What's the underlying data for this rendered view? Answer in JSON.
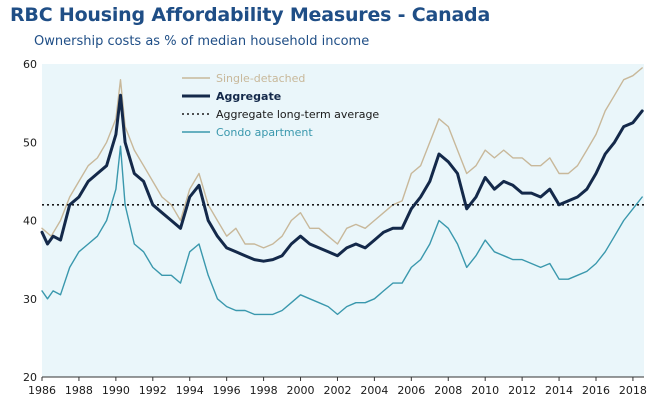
{
  "chart_data": {
    "type": "line",
    "title": "RBC Housing Affordability Measures - Canada",
    "subtitle": "Ownership costs as % of median household income",
    "xlabel": "",
    "ylabel": "",
    "xlim": [
      1986,
      2018.6
    ],
    "ylim": [
      20,
      60
    ],
    "yticks": [
      20,
      30,
      40,
      50,
      60
    ],
    "xticks": [
      1986,
      1988,
      1990,
      1992,
      1994,
      1996,
      1998,
      2000,
      2002,
      2004,
      2006,
      2008,
      2010,
      2012,
      2014,
      2016,
      2018
    ],
    "legend_position": "top-center",
    "series": [
      {
        "name": "Single-detached",
        "color": "#c8b89a",
        "style": "solid",
        "points": [
          [
            1986,
            39
          ],
          [
            1986.5,
            38
          ],
          [
            1987,
            40
          ],
          [
            1987.5,
            43
          ],
          [
            1988,
            45
          ],
          [
            1988.5,
            47
          ],
          [
            1989,
            48
          ],
          [
            1989.5,
            50
          ],
          [
            1990,
            53
          ],
          [
            1990.25,
            58
          ],
          [
            1990.5,
            52
          ],
          [
            1991,
            49
          ],
          [
            1991.5,
            47
          ],
          [
            1992,
            45
          ],
          [
            1992.5,
            43
          ],
          [
            1993,
            42
          ],
          [
            1993.5,
            40
          ],
          [
            1994,
            44
          ],
          [
            1994.5,
            46
          ],
          [
            1995,
            42
          ],
          [
            1995.5,
            40
          ],
          [
            1996,
            38
          ],
          [
            1996.5,
            39
          ],
          [
            1997,
            37
          ],
          [
            1997.5,
            37
          ],
          [
            1998,
            36.5
          ],
          [
            1998.5,
            37
          ],
          [
            1999,
            38
          ],
          [
            1999.5,
            40
          ],
          [
            2000,
            41
          ],
          [
            2000.5,
            39
          ],
          [
            2001,
            39
          ],
          [
            2001.5,
            38
          ],
          [
            2002,
            37
          ],
          [
            2002.5,
            39
          ],
          [
            2003,
            39.5
          ],
          [
            2003.5,
            39
          ],
          [
            2004,
            40
          ],
          [
            2004.5,
            41
          ],
          [
            2005,
            42
          ],
          [
            2005.5,
            42.5
          ],
          [
            2006,
            46
          ],
          [
            2006.5,
            47
          ],
          [
            2007,
            50
          ],
          [
            2007.5,
            53
          ],
          [
            2008,
            52
          ],
          [
            2008.5,
            49
          ],
          [
            2009,
            46
          ],
          [
            2009.5,
            47
          ],
          [
            2010,
            49
          ],
          [
            2010.5,
            48
          ],
          [
            2011,
            49
          ],
          [
            2011.5,
            48
          ],
          [
            2012,
            48
          ],
          [
            2012.5,
            47
          ],
          [
            2013,
            47
          ],
          [
            2013.5,
            48
          ],
          [
            2014,
            46
          ],
          [
            2014.5,
            46
          ],
          [
            2015,
            47
          ],
          [
            2015.5,
            49
          ],
          [
            2016,
            51
          ],
          [
            2016.5,
            54
          ],
          [
            2017,
            56
          ],
          [
            2017.5,
            58
          ],
          [
            2018,
            58.5
          ],
          [
            2018.5,
            59.5
          ]
        ]
      },
      {
        "name": "Aggregate",
        "color": "#14294a",
        "style": "solid",
        "points": [
          [
            1986,
            38.5
          ],
          [
            1986.3,
            37
          ],
          [
            1986.6,
            38
          ],
          [
            1987,
            37.5
          ],
          [
            1987.5,
            42
          ],
          [
            1988,
            43
          ],
          [
            1988.5,
            45
          ],
          [
            1989,
            46
          ],
          [
            1989.5,
            47
          ],
          [
            1990,
            51
          ],
          [
            1990.25,
            56
          ],
          [
            1990.5,
            50
          ],
          [
            1991,
            46
          ],
          [
            1991.5,
            45
          ],
          [
            1992,
            42
          ],
          [
            1992.5,
            41
          ],
          [
            1993,
            40
          ],
          [
            1993.5,
            39
          ],
          [
            1994,
            43
          ],
          [
            1994.5,
            44.5
          ],
          [
            1995,
            40
          ],
          [
            1995.5,
            38
          ],
          [
            1996,
            36.5
          ],
          [
            1996.5,
            36
          ],
          [
            1997,
            35.5
          ],
          [
            1997.5,
            35
          ],
          [
            1998,
            34.8
          ],
          [
            1998.5,
            35
          ],
          [
            1999,
            35.5
          ],
          [
            1999.5,
            37
          ],
          [
            2000,
            38
          ],
          [
            2000.5,
            37
          ],
          [
            2001,
            36.5
          ],
          [
            2001.5,
            36
          ],
          [
            2002,
            35.5
          ],
          [
            2002.5,
            36.5
          ],
          [
            2003,
            37
          ],
          [
            2003.5,
            36.5
          ],
          [
            2004,
            37.5
          ],
          [
            2004.5,
            38.5
          ],
          [
            2005,
            39
          ],
          [
            2005.5,
            39
          ],
          [
            2006,
            41.5
          ],
          [
            2006.5,
            43
          ],
          [
            2007,
            45
          ],
          [
            2007.5,
            48.5
          ],
          [
            2008,
            47.5
          ],
          [
            2008.5,
            46
          ],
          [
            2009,
            41.5
          ],
          [
            2009.5,
            43
          ],
          [
            2010,
            45.5
          ],
          [
            2010.5,
            44
          ],
          [
            2011,
            45
          ],
          [
            2011.5,
            44.5
          ],
          [
            2012,
            43.5
          ],
          [
            2012.5,
            43.5
          ],
          [
            2013,
            43
          ],
          [
            2013.5,
            44
          ],
          [
            2014,
            42
          ],
          [
            2014.5,
            42.5
          ],
          [
            2015,
            43
          ],
          [
            2015.5,
            44
          ],
          [
            2016,
            46
          ],
          [
            2016.5,
            48.5
          ],
          [
            2017,
            50
          ],
          [
            2017.5,
            52
          ],
          [
            2018,
            52.5
          ],
          [
            2018.5,
            54
          ]
        ]
      },
      {
        "name": "Aggregate long-term average",
        "color": "#1a1a1a",
        "style": "dotted",
        "points": [
          [
            1986,
            42
          ],
          [
            2018.6,
            42
          ]
        ]
      },
      {
        "name": "Condo apartment",
        "color": "#3a98ad",
        "style": "solid",
        "points": [
          [
            1986,
            31
          ],
          [
            1986.3,
            30
          ],
          [
            1986.6,
            31
          ],
          [
            1987,
            30.5
          ],
          [
            1987.5,
            34
          ],
          [
            1988,
            36
          ],
          [
            1988.5,
            37
          ],
          [
            1989,
            38
          ],
          [
            1989.5,
            40
          ],
          [
            1990,
            44
          ],
          [
            1990.25,
            49.5
          ],
          [
            1990.5,
            42
          ],
          [
            1991,
            37
          ],
          [
            1991.5,
            36
          ],
          [
            1992,
            34
          ],
          [
            1992.5,
            33
          ],
          [
            1993,
            33
          ],
          [
            1993.5,
            32
          ],
          [
            1994,
            36
          ],
          [
            1994.5,
            37
          ],
          [
            1995,
            33
          ],
          [
            1995.5,
            30
          ],
          [
            1996,
            29
          ],
          [
            1996.5,
            28.5
          ],
          [
            1997,
            28.5
          ],
          [
            1997.5,
            28
          ],
          [
            1998,
            28
          ],
          [
            1998.5,
            28
          ],
          [
            1999,
            28.5
          ],
          [
            1999.5,
            29.5
          ],
          [
            2000,
            30.5
          ],
          [
            2000.5,
            30
          ],
          [
            2001,
            29.5
          ],
          [
            2001.5,
            29
          ],
          [
            2002,
            28
          ],
          [
            2002.5,
            29
          ],
          [
            2003,
            29.5
          ],
          [
            2003.5,
            29.5
          ],
          [
            2004,
            30
          ],
          [
            2004.5,
            31
          ],
          [
            2005,
            32
          ],
          [
            2005.5,
            32
          ],
          [
            2006,
            34
          ],
          [
            2006.5,
            35
          ],
          [
            2007,
            37
          ],
          [
            2007.5,
            40
          ],
          [
            2008,
            39
          ],
          [
            2008.5,
            37
          ],
          [
            2009,
            34
          ],
          [
            2009.5,
            35.5
          ],
          [
            2010,
            37.5
          ],
          [
            2010.5,
            36
          ],
          [
            2011,
            35.5
          ],
          [
            2011.5,
            35
          ],
          [
            2012,
            35
          ],
          [
            2012.5,
            34.5
          ],
          [
            2013,
            34
          ],
          [
            2013.5,
            34.5
          ],
          [
            2014,
            32.5
          ],
          [
            2014.5,
            32.5
          ],
          [
            2015,
            33
          ],
          [
            2015.5,
            33.5
          ],
          [
            2016,
            34.5
          ],
          [
            2016.5,
            36
          ],
          [
            2017,
            38
          ],
          [
            2017.5,
            40
          ],
          [
            2018,
            41.5
          ],
          [
            2018.5,
            43
          ]
        ]
      }
    ]
  }
}
